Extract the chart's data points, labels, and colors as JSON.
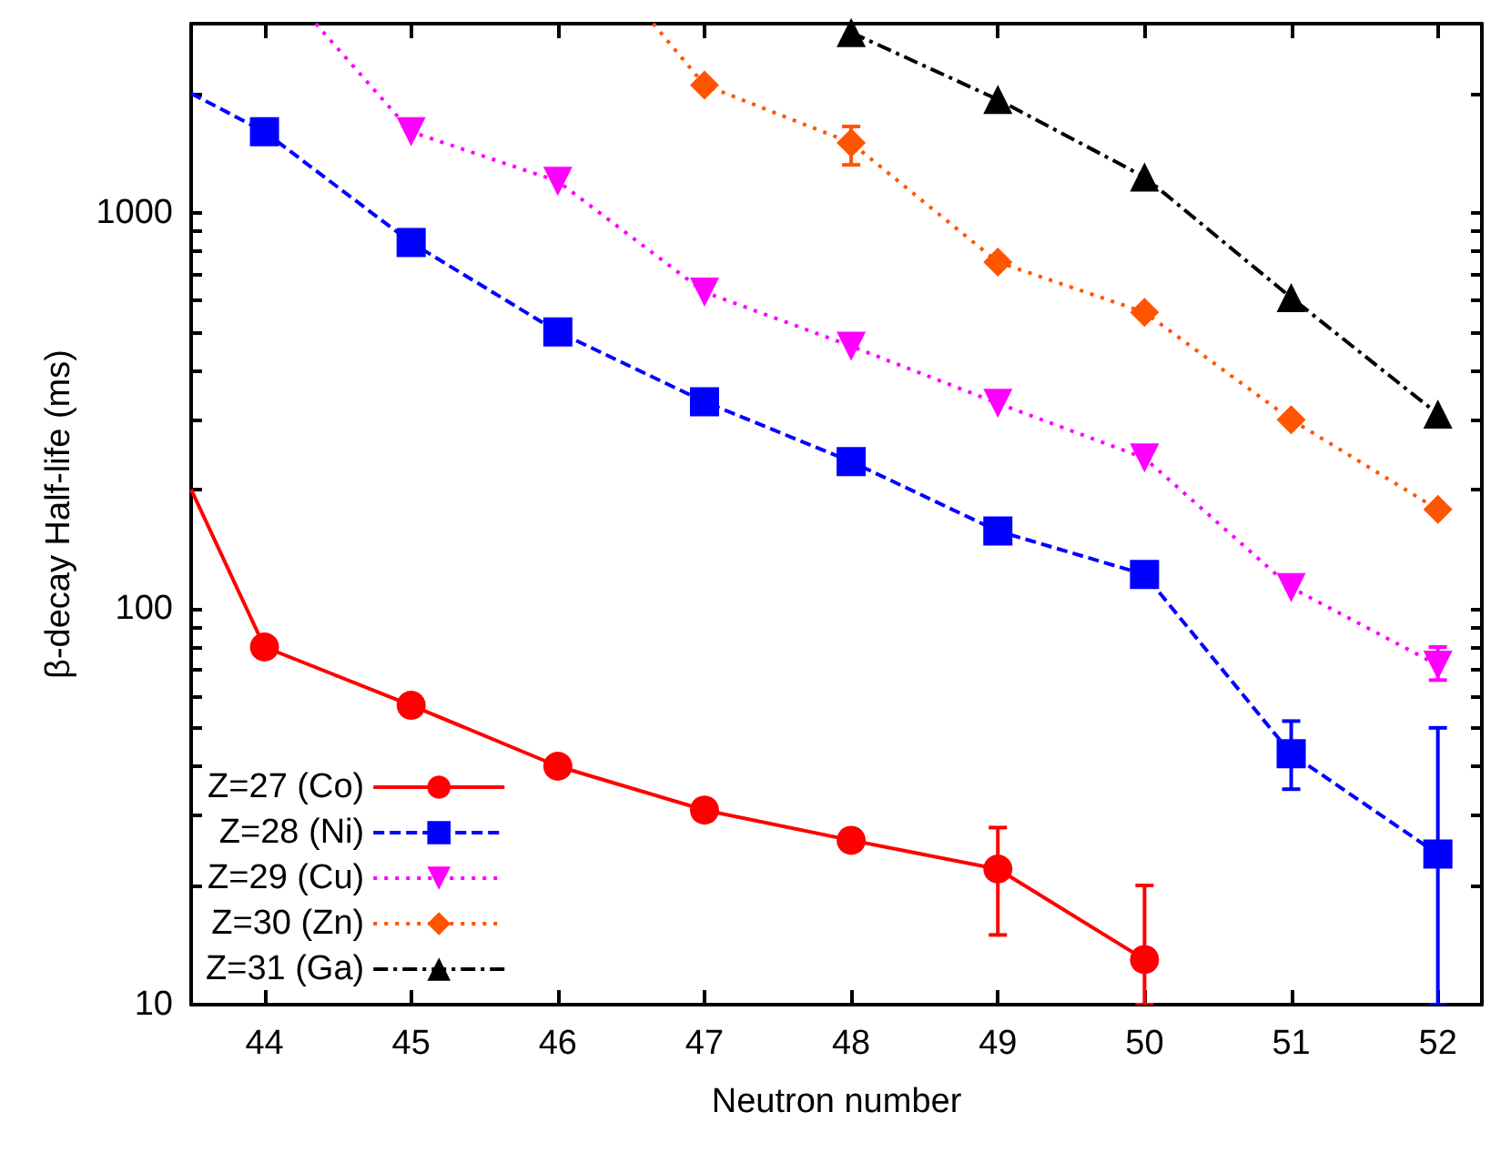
{
  "chart_data": {
    "type": "line",
    "xlabel": "Neutron number",
    "ylabel": "β-decay Half-life (ms)",
    "log": "y",
    "grid": false,
    "legend": "bottom left",
    "xlim": [
      43.5,
      52.3
    ],
    "xticks": [
      44,
      45,
      46,
      47,
      48,
      49,
      50,
      51,
      52
    ],
    "ylim": [
      10,
      3000
    ],
    "yticks": [
      10,
      {
        "value": 20,
        "label": null
      },
      {
        "value": 30,
        "label": null
      },
      {
        "value": 40,
        "label": null
      },
      {
        "value": 50,
        "label": null
      },
      {
        "value": 60,
        "label": null
      },
      {
        "value": 70,
        "label": null
      },
      {
        "value": 80,
        "label": null
      },
      {
        "value": 90,
        "label": null
      },
      100,
      {
        "value": 200,
        "label": null
      },
      {
        "value": 300,
        "label": null
      },
      {
        "value": 400,
        "label": null
      },
      {
        "value": 500,
        "label": null
      },
      {
        "value": 600,
        "label": null
      },
      {
        "value": 700,
        "label": null
      },
      {
        "value": 800,
        "label": null
      },
      {
        "value": 900,
        "label": null
      },
      1000,
      {
        "value": 2000,
        "label": null
      }
    ],
    "series": [
      {
        "name": "Z=27 (Co)",
        "color": "#ff0000",
        "marker": "circle",
        "line_style": "solid",
        "x": [
          43.5,
          44,
          45,
          46,
          47,
          48,
          49,
          50
        ],
        "values": [
          200,
          80,
          57,
          40,
          31,
          26,
          22,
          13
        ],
        "errors": [
          null,
          null,
          null,
          null,
          null,
          null,
          [
            15,
            28
          ],
          [
            10,
            20
          ]
        ]
      },
      {
        "name": "Z=28 (Ni)",
        "color": "#0000ff",
        "marker": "square",
        "line_style": "dashed",
        "x": [
          43.5,
          44,
          45,
          46,
          47,
          48,
          49,
          50,
          51,
          52
        ],
        "values": [
          2000,
          1600,
          840,
          500,
          333,
          235,
          157,
          122,
          43,
          24
        ],
        "errors": [
          null,
          null,
          null,
          null,
          null,
          null,
          null,
          null,
          [
            35,
            52
          ],
          [
            10,
            50
          ]
        ]
      },
      {
        "name": "Z=29 (Cu)",
        "color": "#ff00ff",
        "marker": "triangle-down",
        "line_style": "dotted",
        "x": [
          44.35,
          45,
          46,
          47,
          48,
          49,
          50,
          51,
          52
        ],
        "values": [
          3000,
          1600,
          1200,
          630,
          460,
          330,
          240,
          113,
          72
        ],
        "errors": [
          null,
          null,
          null,
          null,
          null,
          null,
          null,
          null,
          [
            66,
            80
          ]
        ]
      },
      {
        "name": "Z=30 (Zn)",
        "color": "#ff5500",
        "marker": "diamond",
        "line_style": "dotted",
        "x": [
          46.65,
          47,
          48,
          49,
          50,
          51,
          52
        ],
        "values": [
          3000,
          2100,
          1500,
          750,
          560,
          300,
          178
        ],
        "errors": [
          null,
          null,
          [
            1320,
            1650
          ],
          null,
          null,
          null,
          null
        ]
      },
      {
        "name": "Z=31 (Ga)",
        "color": "#000000",
        "marker": "triangle",
        "line_style": "dashdot",
        "x": [
          48,
          49,
          50,
          51,
          52
        ],
        "values": [
          2850,
          1930,
          1230,
          610,
          310
        ]
      }
    ]
  }
}
